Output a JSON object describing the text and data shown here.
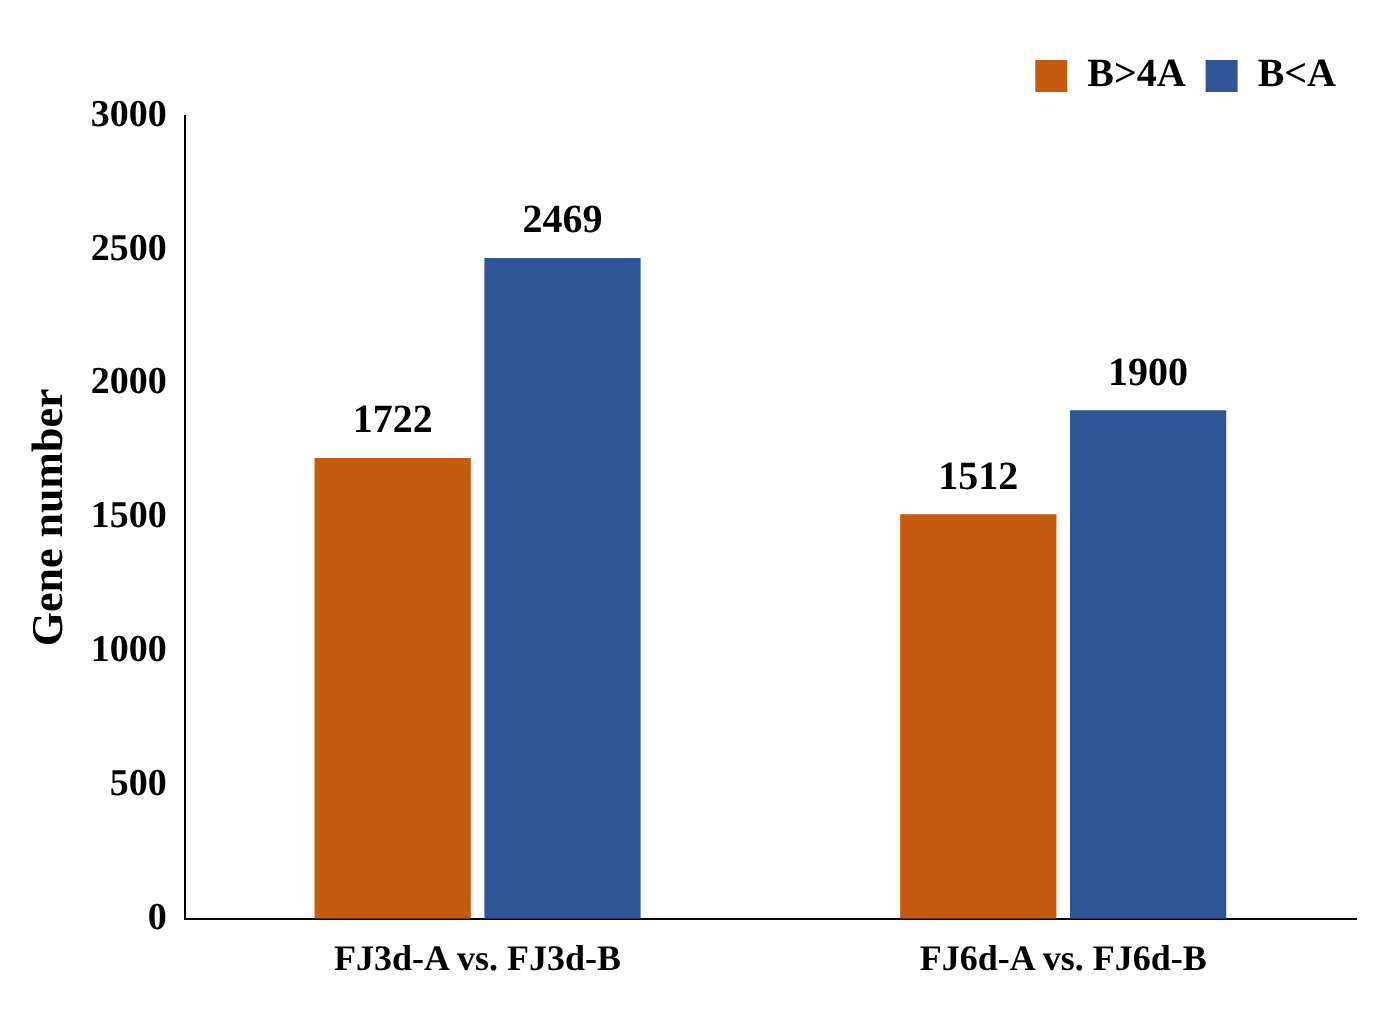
{
  "chart_data": {
    "type": "bar",
    "ylabel": "Gene number",
    "categories": [
      "FJ3d-A vs. FJ3d-B",
      "FJ6d-A vs. FJ6d-B"
    ],
    "series": [
      {
        "name": "B>4A",
        "color": "#c55a11",
        "values": [
          1722,
          1512
        ]
      },
      {
        "name": "B<A",
        "color": "#2f5597",
        "values": [
          2469,
          1900
        ]
      }
    ],
    "ylim": [
      0,
      3000
    ],
    "yticks": [
      0,
      500,
      1000,
      1500,
      2000,
      2500,
      3000
    ],
    "grid": false,
    "legend": "top right",
    "data_labels": true
  }
}
